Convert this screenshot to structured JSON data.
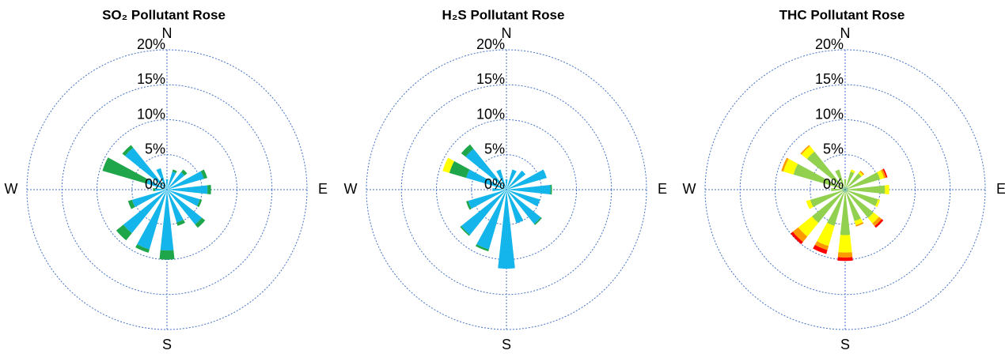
{
  "chart_data": [
    {
      "type": "rose",
      "title": "SO₂ Pollutant Rose",
      "categories": [
        "N",
        null,
        null,
        null,
        "E",
        null,
        null,
        null,
        "S",
        null,
        null,
        null,
        "W",
        null,
        null,
        null
      ],
      "rlim": [
        0,
        20
      ],
      "rticks": [
        {
          "value": 0,
          "label": "0%"
        },
        {
          "value": 5,
          "label": "5%"
        },
        {
          "value": 10,
          "label": "10%"
        },
        {
          "value": 15,
          "label": "15%"
        },
        {
          "value": 20,
          "label": "20%"
        }
      ],
      "grid": true,
      "series": [
        {
          "color": "#13b5ea",
          "values": [
            1.5,
            2.7,
            3.2,
            5.5,
            5.8,
            4.9,
            6.4,
            4.9,
            8.7,
            8.9,
            8.0,
            5.2,
            1.7,
            3.0,
            7.7,
            3.2
          ]
        },
        {
          "color": "#1fa64a",
          "values": [
            0,
            0.3,
            0.5,
            0.5,
            0.5,
            0.3,
            0.6,
            0.5,
            1.3,
            0.5,
            1.3,
            0.6,
            0.3,
            6.6,
            0.5,
            0
          ]
        }
      ]
    },
    {
      "type": "rose",
      "title": "H₂S Pollutant Rose",
      "categories": [
        "N",
        null,
        null,
        null,
        "E",
        null,
        null,
        null,
        "S",
        null,
        null,
        null,
        "W",
        null,
        null,
        null
      ],
      "rlim": [
        0,
        20
      ],
      "rticks": [
        {
          "value": 0,
          "label": "0%"
        },
        {
          "value": 5,
          "label": "5%"
        },
        {
          "value": 10,
          "label": "10%"
        },
        {
          "value": 15,
          "label": "15%"
        },
        {
          "value": 20,
          "label": "20%"
        }
      ],
      "grid": true,
      "series": [
        {
          "color": "#13b5ea",
          "values": [
            1.5,
            3,
            3.5,
            6,
            6.3,
            5,
            6.3,
            5,
            11.3,
            8.9,
            8.3,
            5.7,
            2,
            6,
            7.5,
            3
          ]
        },
        {
          "color": "#1fa64a",
          "values": [
            0,
            0,
            0,
            0,
            0.2,
            0,
            0.2,
            0,
            0,
            0.3,
            0.2,
            0.3,
            0,
            2.5,
            0.8,
            0
          ]
        },
        {
          "color": "#ffff00",
          "values": [
            0,
            0,
            0,
            0,
            0,
            0,
            0,
            0,
            0,
            0,
            0,
            0,
            0,
            1.0,
            0,
            0
          ]
        }
      ]
    },
    {
      "type": "rose",
      "title": "THC Pollutant Rose",
      "categories": [
        "N",
        null,
        null,
        null,
        "E",
        null,
        null,
        null,
        "S",
        null,
        null,
        null,
        "W",
        null,
        null,
        null
      ],
      "rlim": [
        0,
        20
      ],
      "rticks": [
        {
          "value": 0,
          "label": "0%"
        },
        {
          "value": 5,
          "label": "5%"
        },
        {
          "value": 10,
          "label": "10%"
        },
        {
          "value": 15,
          "label": "15%"
        },
        {
          "value": 20,
          "label": "20%"
        }
      ],
      "grid": true,
      "series": [
        {
          "color": "#2e9e4f",
          "values": [
            0.4,
            0.4,
            0.4,
            0.4,
            0.4,
            0.4,
            0.4,
            0.4,
            0.4,
            0.4,
            0.4,
            0.4,
            0.4,
            0.4,
            0.4,
            0.4
          ]
        },
        {
          "color": "#92d050",
          "values": [
            1.1,
            2.3,
            2.6,
            4.8,
            5.3,
            4.5,
            4.8,
            4.3,
            6.1,
            5.0,
            5.7,
            4.8,
            1.6,
            7.3,
            6.6,
            2.6
          ]
        },
        {
          "color": "#ffff00",
          "values": [
            0,
            0.3,
            0.3,
            0.6,
            0.6,
            0.3,
            1,
            0.6,
            2.5,
            3.0,
            2.5,
            0.6,
            0,
            1.5,
            1.0,
            0
          ]
        },
        {
          "color": "#ff9900",
          "values": [
            0,
            0,
            0.2,
            0.3,
            0,
            0,
            0.5,
            0.2,
            0.7,
            0.6,
            1.0,
            0,
            0,
            0.3,
            0.2,
            0
          ]
        },
        {
          "color": "#ff0000",
          "values": [
            0,
            0,
            0,
            0.2,
            0,
            0,
            0.3,
            0,
            0.5,
            0.6,
            0.4,
            0,
            0,
            0,
            0,
            0
          ]
        }
      ]
    }
  ]
}
